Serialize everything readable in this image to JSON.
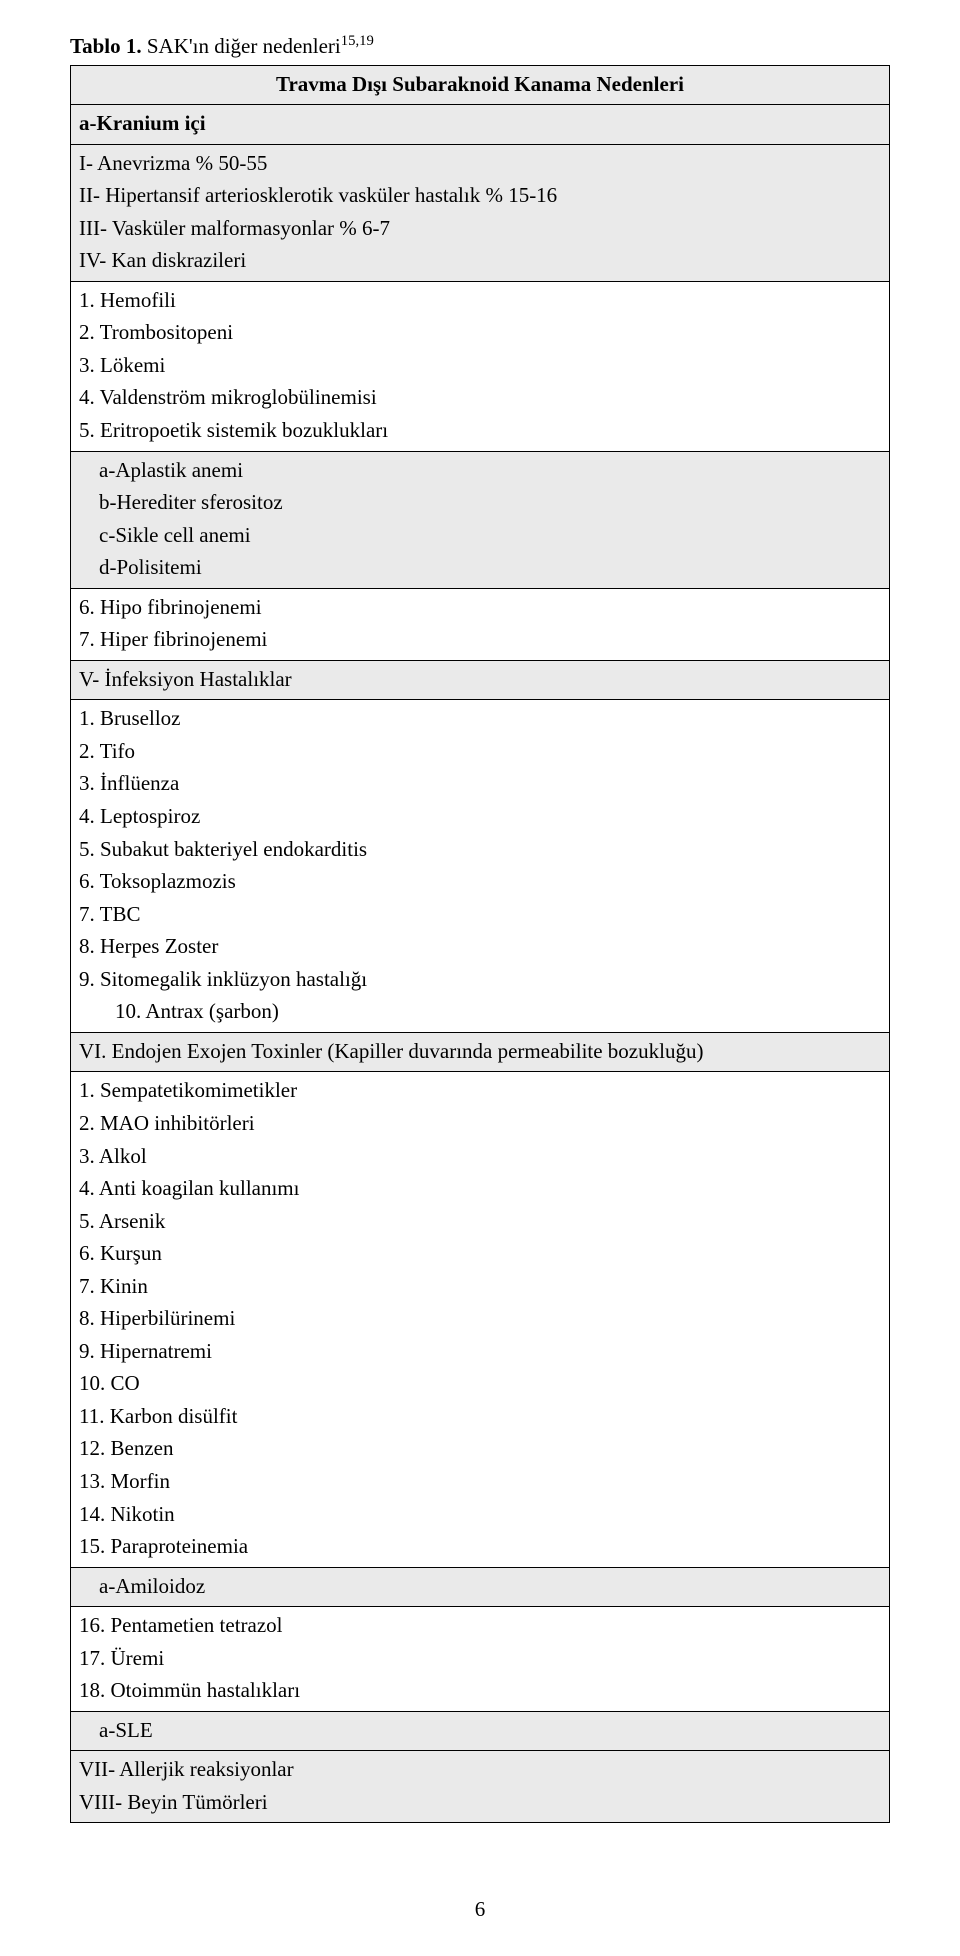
{
  "title": {
    "label": "Tablo 1.",
    "text": " SAK'ın diğer nedenleri",
    "sup": "15,19"
  },
  "header_center": "Travma Dışı Subaraknoid Kanama Nedenleri",
  "section_a_label": "a-Kranium içi",
  "section_a_items": [
    "I- Anevrizma % 50-55",
    "II- Hipertansif arteriosklerotik vasküler hastalık % 15-16",
    "III- Vasküler malformasyonlar % 6-7",
    "IV- Kan diskrazileri"
  ],
  "blood_list": [
    "1. Hemofili",
    "2. Trombositopeni",
    "3. Lökemi",
    "4. Valdenström mikroglobülinemisi",
    "5. Eritropoetik sistemik bozuklukları"
  ],
  "anemia_list": [
    "a-Aplastik anemi",
    "b-Herediter sferositoz",
    "c-Sikle cell anemi",
    "d-Polisitemi"
  ],
  "fibrino_list": [
    "6. Hipo fibrinojenemi",
    "7. Hiper fibrinojenemi"
  ],
  "section_v_label": "V- İnfeksiyon Hastalıklar",
  "infection_list": [
    "1. Bruselloz",
    "2. Tifo",
    "3. İnflüenza",
    "4. Leptospiroz",
    "5. Subakut bakteriyel endokarditis",
    "6. Toksoplazmozis",
    "7. TBC",
    "8. Herpes Zoster",
    "9. Sitomegalik inklüzyon hastalığı"
  ],
  "infection_indent": "10. Antrax (şarbon)",
  "section_vi_label": "VI. Endojen Exojen Toxinler (Kapiller duvarında permeabilite bozukluğu)",
  "toxin_list": [
    "1. Sempatetikomimetikler",
    "2. MAO inhibitörleri",
    "3. Alkol",
    "4. Anti koagilan kullanımı",
    "5. Arsenik",
    "6. Kurşun",
    "7. Kinin",
    "8. Hiperbilürinemi",
    "9. Hipernatremi",
    "10. CO",
    "11. Karbon disülfit",
    "12. Benzen",
    "13. Morfin",
    "14. Nikotin",
    "15. Paraproteinemia"
  ],
  "amiloidoz": "a-Amiloidoz",
  "after_amiloidoz": [
    "16. Pentametien tetrazol",
    "17. Üremi",
    "18. Otoimmün hastalıkları"
  ],
  "sle": "a-SLE",
  "final_list": [
    "VII- Allerjik reaksiyonlar",
    "VIII- Beyin Tümörleri"
  ],
  "page_number": "6"
}
